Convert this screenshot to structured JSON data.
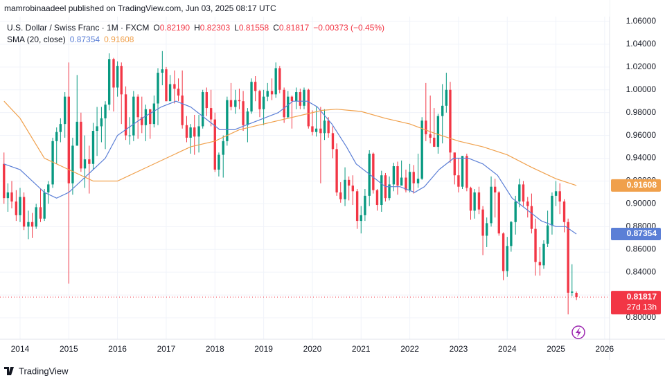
{
  "header": {
    "byline": "mamrobinaadeel published on TradingView.com, Jun 03, 2025 08:17 UTC"
  },
  "footer": {
    "brand": "TradingView"
  },
  "chart_data": {
    "type": "candlestick",
    "symbol": "U.S. Dollar / Swiss Franc · 1M · FXCM",
    "ohlc_legend": [
      {
        "label": "O",
        "value": "0.82190"
      },
      {
        "label": "H",
        "value": "0.82303"
      },
      {
        "label": "L",
        "value": "0.81558"
      },
      {
        "label": "C",
        "value": "0.81817"
      }
    ],
    "change": "−0.00373 (−0.45%)",
    "indicator": "SMA (20, close)",
    "countdown": "27d 13h",
    "up_color": "#089981",
    "down_color": "#f23645",
    "xlim": [
      2013.588,
      2026.101
    ],
    "xticks": [
      2014,
      2015,
      2016,
      2017,
      2018,
      2019,
      2020,
      2021,
      2022,
      2023,
      2024,
      2025,
      2026
    ],
    "ylim": [
      0.7812,
      1.0788
    ],
    "yticks": [
      {
        "value": 0.8,
        "label": "0.80000"
      },
      {
        "value": 0.82,
        "label": "0.82000"
      },
      {
        "value": 0.84,
        "label": "0.84000"
      },
      {
        "value": 0.86,
        "label": "0.86000"
      },
      {
        "value": 0.88,
        "label": "0.88000"
      },
      {
        "value": 0.9,
        "label": "0.90000"
      },
      {
        "value": 0.92,
        "label": "0.92000"
      },
      {
        "value": 0.94,
        "label": "0.94000"
      },
      {
        "value": 0.96,
        "label": "0.96000"
      },
      {
        "value": 0.98,
        "label": "0.98000"
      },
      {
        "value": 1.0,
        "label": "1.00000"
      },
      {
        "value": 1.02,
        "label": "1.02000"
      },
      {
        "value": 1.04,
        "label": "1.04000"
      },
      {
        "value": 1.06,
        "label": "1.06000"
      }
    ],
    "grid": true,
    "x": [
      2013.67,
      2013.75,
      2013.83,
      2013.92,
      2014.0,
      2014.08,
      2014.17,
      2014.25,
      2014.33,
      2014.42,
      2014.5,
      2014.58,
      2014.67,
      2014.75,
      2014.83,
      2014.92,
      2015.0,
      2015.08,
      2015.17,
      2015.25,
      2015.33,
      2015.42,
      2015.5,
      2015.58,
      2015.67,
      2015.75,
      2015.83,
      2015.92,
      2016.0,
      2016.08,
      2016.17,
      2016.25,
      2016.33,
      2016.42,
      2016.5,
      2016.58,
      2016.67,
      2016.75,
      2016.83,
      2016.92,
      2017.0,
      2017.08,
      2017.17,
      2017.25,
      2017.33,
      2017.42,
      2017.5,
      2017.58,
      2017.67,
      2017.75,
      2017.83,
      2017.92,
      2018.0,
      2018.08,
      2018.17,
      2018.25,
      2018.33,
      2018.42,
      2018.5,
      2018.58,
      2018.67,
      2018.75,
      2018.83,
      2018.92,
      2019.0,
      2019.08,
      2019.17,
      2019.25,
      2019.33,
      2019.42,
      2019.5,
      2019.58,
      2019.67,
      2019.75,
      2019.83,
      2019.92,
      2020.0,
      2020.08,
      2020.17,
      2020.25,
      2020.33,
      2020.42,
      2020.5,
      2020.58,
      2020.67,
      2020.75,
      2020.83,
      2020.92,
      2021.0,
      2021.08,
      2021.17,
      2021.25,
      2021.33,
      2021.42,
      2021.5,
      2021.58,
      2021.67,
      2021.75,
      2021.83,
      2021.92,
      2022.0,
      2022.08,
      2022.17,
      2022.25,
      2022.33,
      2022.42,
      2022.5,
      2022.58,
      2022.67,
      2022.75,
      2022.83,
      2022.92,
      2023.0,
      2023.08,
      2023.17,
      2023.25,
      2023.33,
      2023.42,
      2023.5,
      2023.58,
      2023.67,
      2023.75,
      2023.83,
      2023.92,
      2024.0,
      2024.08,
      2024.17,
      2024.25,
      2024.33,
      2024.42,
      2024.5,
      2024.58,
      2024.67,
      2024.75,
      2024.83,
      2024.92,
      2025.0,
      2025.08,
      2025.17,
      2025.25,
      2025.33,
      2025.42
    ],
    "open": [
      0.935,
      0.905,
      0.91,
      0.902,
      0.89,
      0.906,
      0.88,
      0.884,
      0.88,
      0.897,
      0.887,
      0.91,
      0.917,
      0.955,
      0.963,
      0.97,
      0.994,
      0.918,
      0.951,
      0.972,
      0.931,
      0.939,
      0.935,
      0.964,
      0.968,
      0.975,
      0.987,
      1.027,
      1.002,
      1.021,
      0.996,
      0.96,
      0.96,
      0.994,
      0.976,
      0.969,
      0.983,
      0.97,
      0.988,
      1.015,
      1.018,
      0.99,
      1.005,
      1.001,
      0.995,
      0.969,
      0.958,
      0.967,
      0.959,
      0.968,
      0.998,
      0.984,
      0.974,
      0.93,
      0.943,
      0.955,
      0.991,
      0.985,
      0.991,
      0.99,
      0.969,
      0.981,
      1.007,
      0.999,
      0.983,
      0.994,
      0.999,
      0.996,
      1.019,
      1.0,
      0.976,
      0.994,
      0.99,
      0.998,
      0.986,
      1.0,
      0.968,
      0.963,
      0.966,
      0.962,
      0.973,
      0.962,
      0.948,
      0.91,
      0.904,
      0.921,
      0.916,
      0.911,
      0.885,
      0.89,
      0.907,
      0.944,
      0.912,
      0.899,
      0.925,
      0.905,
      0.917,
      0.933,
      0.916,
      0.923,
      0.912,
      0.928,
      0.918,
      0.922,
      0.973,
      0.961,
      0.958,
      0.95,
      0.977,
      0.986,
      1.0,
      0.945,
      0.925,
      0.915,
      0.942,
      0.914,
      0.894,
      0.91,
      0.895,
      0.872,
      0.883,
      0.915,
      0.91,
      0.874,
      0.841,
      0.863,
      0.884,
      0.902,
      0.917,
      0.902,
      0.898,
      0.878,
      0.849,
      0.846,
      0.865,
      0.881,
      0.907,
      0.911,
      0.902,
      0.884,
      0.822,
      0.8219
    ],
    "high": [
      0.945,
      0.918,
      0.92,
      0.912,
      0.914,
      0.91,
      0.894,
      0.892,
      0.9,
      0.913,
      0.913,
      0.92,
      0.958,
      0.967,
      0.975,
      0.998,
      1.024,
      0.958,
      1.013,
      0.98,
      0.96,
      0.951,
      0.971,
      0.985,
      0.985,
      0.99,
      1.032,
      1.028,
      1.025,
      1.024,
      1.003,
      0.976,
      0.999,
      0.996,
      0.994,
      0.987,
      0.983,
      0.995,
      1.019,
      1.034,
      1.02,
      1.013,
      1.017,
      1.01,
      1.017,
      0.977,
      0.97,
      0.978,
      0.978,
      1.0,
      1.002,
      1.0,
      0.98,
      0.945,
      0.96,
      0.994,
      1.006,
      1.0,
      1.001,
      0.999,
      0.984,
      1.01,
      1.012,
      1.0,
      1.0,
      1.006,
      1.01,
      1.024,
      1.021,
      1.002,
      0.999,
      0.995,
      1.002,
      1.001,
      1.002,
      1.001,
      0.982,
      0.985,
      0.985,
      0.983,
      0.976,
      0.968,
      0.953,
      0.919,
      0.932,
      0.924,
      0.925,
      0.913,
      0.898,
      0.913,
      0.947,
      0.945,
      0.913,
      0.929,
      0.927,
      0.924,
      0.936,
      0.937,
      0.938,
      0.93,
      0.935,
      0.934,
      0.944,
      0.976,
      1.006,
      0.995,
      0.984,
      0.979,
      1.005,
      1.015,
      1.007,
      0.945,
      0.94,
      0.942,
      0.944,
      0.915,
      0.913,
      0.915,
      0.898,
      0.888,
      0.924,
      0.922,
      0.911,
      0.875,
      0.871,
      0.885,
      0.907,
      0.922,
      0.92,
      0.906,
      0.909,
      0.887,
      0.862,
      0.868,
      0.894,
      0.91,
      0.92,
      0.918,
      0.904,
      0.887,
      0.847,
      0.82303
    ],
    "low": [
      0.9,
      0.893,
      0.896,
      0.885,
      0.884,
      0.877,
      0.869,
      0.87,
      0.878,
      0.884,
      0.885,
      0.9,
      0.914,
      0.935,
      0.954,
      0.958,
      0.83,
      0.908,
      0.951,
      0.928,
      0.914,
      0.909,
      0.93,
      0.942,
      0.954,
      0.948,
      0.982,
      0.981,
      0.994,
      0.97,
      0.956,
      0.952,
      0.955,
      0.957,
      0.962,
      0.955,
      0.957,
      0.967,
      0.969,
      1.004,
      0.99,
      0.991,
      0.988,
      0.99,
      0.966,
      0.954,
      0.944,
      0.943,
      0.945,
      0.966,
      0.977,
      0.968,
      0.928,
      0.924,
      0.923,
      0.951,
      0.982,
      0.979,
      0.983,
      0.964,
      0.954,
      0.979,
      0.99,
      0.976,
      0.969,
      0.99,
      0.991,
      0.993,
      0.997,
      0.971,
      0.975,
      0.966,
      0.983,
      0.983,
      0.983,
      0.966,
      0.96,
      0.959,
      0.918,
      0.956,
      0.958,
      0.94,
      0.907,
      0.901,
      0.898,
      0.903,
      0.899,
      0.878,
      0.874,
      0.885,
      0.898,
      0.909,
      0.894,
      0.893,
      0.902,
      0.903,
      0.911,
      0.908,
      0.916,
      0.91,
      0.91,
      0.909,
      0.914,
      0.921,
      0.955,
      0.953,
      0.95,
      0.944,
      0.953,
      0.98,
      0.936,
      0.917,
      0.91,
      0.913,
      0.911,
      0.886,
      0.887,
      0.891,
      0.855,
      0.862,
      0.88,
      0.888,
      0.872,
      0.833,
      0.836,
      0.858,
      0.873,
      0.897,
      0.898,
      0.888,
      0.874,
      0.837,
      0.837,
      0.843,
      0.862,
      0.873,
      0.898,
      0.891,
      0.875,
      0.803,
      0.819,
      0.81558
    ],
    "close": [
      0.905,
      0.91,
      0.902,
      0.89,
      0.906,
      0.88,
      0.884,
      0.88,
      0.897,
      0.887,
      0.91,
      0.917,
      0.955,
      0.963,
      0.97,
      0.994,
      0.918,
      0.951,
      0.972,
      0.931,
      0.939,
      0.935,
      0.964,
      0.968,
      0.975,
      0.987,
      1.027,
      1.002,
      1.021,
      0.996,
      0.96,
      0.96,
      0.994,
      0.976,
      0.969,
      0.983,
      0.97,
      0.988,
      1.015,
      1.018,
      0.99,
      1.005,
      1.001,
      0.995,
      0.969,
      0.958,
      0.967,
      0.959,
      0.968,
      0.998,
      0.984,
      0.974,
      0.93,
      0.943,
      0.955,
      0.991,
      0.985,
      0.991,
      0.99,
      0.969,
      0.981,
      1.007,
      0.999,
      0.983,
      0.994,
      0.999,
      0.996,
      1.019,
      1.0,
      0.976,
      0.994,
      0.99,
      0.998,
      0.986,
      1.0,
      0.968,
      0.963,
      0.966,
      0.962,
      0.973,
      0.962,
      0.948,
      0.91,
      0.904,
      0.921,
      0.916,
      0.911,
      0.885,
      0.89,
      0.907,
      0.944,
      0.912,
      0.899,
      0.925,
      0.905,
      0.917,
      0.933,
      0.916,
      0.923,
      0.912,
      0.928,
      0.918,
      0.922,
      0.973,
      0.961,
      0.958,
      0.95,
      0.977,
      0.986,
      1.0,
      0.945,
      0.925,
      0.915,
      0.942,
      0.914,
      0.894,
      0.91,
      0.895,
      0.872,
      0.883,
      0.915,
      0.91,
      0.874,
      0.841,
      0.863,
      0.884,
      0.902,
      0.917,
      0.902,
      0.898,
      0.878,
      0.849,
      0.846,
      0.865,
      0.881,
      0.907,
      0.911,
      0.902,
      0.884,
      0.822,
      0.823,
      0.81817
    ],
    "last_close": 0.81817,
    "series": [
      {
        "color": "#5b7fd6",
        "last_label": "0.87354",
        "x": [
          2013.67,
          2014.0,
          2014.5,
          2014.75,
          2015.0,
          2015.5,
          2015.75,
          2016.0,
          2016.5,
          2016.9,
          2017.2,
          2017.5,
          2017.8,
          2018.1,
          2018.4,
          2018.7,
          2019.0,
          2019.3,
          2019.6,
          2019.9,
          2020.1,
          2020.4,
          2020.7,
          2020.9,
          2021.2,
          2021.5,
          2021.8,
          2022.1,
          2022.3,
          2022.6,
          2022.9,
          2023.2,
          2023.5,
          2023.8,
          2024.1,
          2024.4,
          2024.7,
          2025.0,
          2025.2,
          2025.42
        ],
        "values": [
          0.935,
          0.93,
          0.91,
          0.905,
          0.91,
          0.93,
          0.94,
          0.96,
          0.975,
          0.985,
          0.99,
          0.985,
          0.975,
          0.965,
          0.965,
          0.97,
          0.975,
          0.98,
          0.99,
          0.99,
          0.985,
          0.97,
          0.95,
          0.935,
          0.925,
          0.915,
          0.915,
          0.91,
          0.915,
          0.93,
          0.94,
          0.94,
          0.935,
          0.925,
          0.905,
          0.895,
          0.885,
          0.88,
          0.88,
          0.87354
        ]
      },
      {
        "color": "#f0a04b",
        "last_label": "0.91608",
        "x": [
          2013.67,
          2014.0,
          2014.5,
          2015.0,
          2015.5,
          2016.0,
          2016.5,
          2017.0,
          2017.5,
          2018.0,
          2018.5,
          2019.0,
          2019.5,
          2019.8,
          2020.2,
          2020.5,
          2021.0,
          2021.5,
          2022.0,
          2022.5,
          2023.0,
          2023.5,
          2024.0,
          2024.5,
          2025.0,
          2025.42
        ],
        "values": [
          0.99,
          0.975,
          0.94,
          0.93,
          0.92,
          0.92,
          0.93,
          0.94,
          0.95,
          0.955,
          0.965,
          0.97,
          0.975,
          0.978,
          0.982,
          0.983,
          0.981,
          0.975,
          0.97,
          0.962,
          0.955,
          0.95,
          0.943,
          0.932,
          0.922,
          0.91608
        ]
      }
    ]
  }
}
